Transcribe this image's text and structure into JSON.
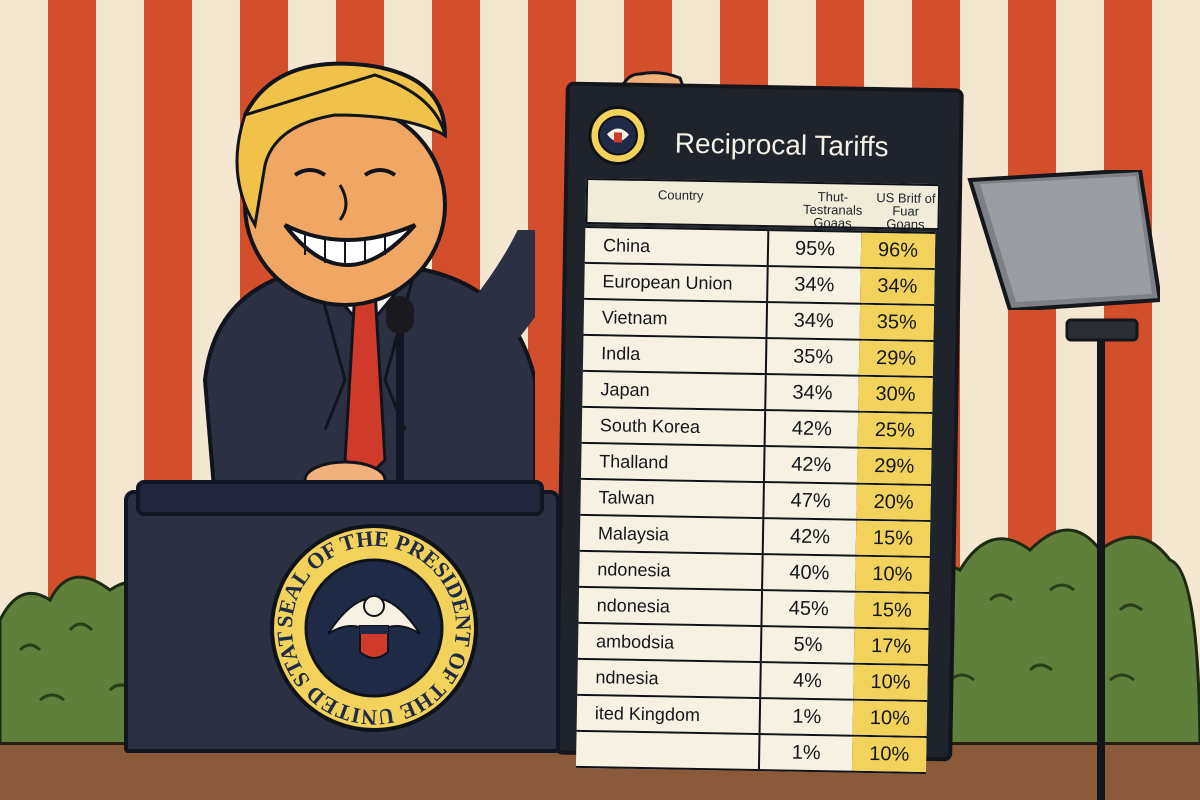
{
  "board": {
    "title": "Reciprocal Tariffs",
    "headers": {
      "country": "Country",
      "col_a": "Thut- Testranals Goaas",
      "col_b": "US Britf of Fuar Goans"
    },
    "rows": [
      {
        "country": "China",
        "a": "95%",
        "b": "96%"
      },
      {
        "country": "European Union",
        "a": "34%",
        "b": "34%"
      },
      {
        "country": "Vietnam",
        "a": "34%",
        "b": "35%"
      },
      {
        "country": "Indla",
        "a": "35%",
        "b": "29%"
      },
      {
        "country": "Japan",
        "a": "34%",
        "b": "30%"
      },
      {
        "country": "South Korea",
        "a": "42%",
        "b": "25%"
      },
      {
        "country": "Thalland",
        "a": "42%",
        "b": "29%"
      },
      {
        "country": "Talwan",
        "a": "47%",
        "b": "20%"
      },
      {
        "country": "Malaysia",
        "a": "42%",
        "b": "15%"
      },
      {
        "country": "ndonesia",
        "a": "40%",
        "b": "10%"
      },
      {
        "country": "ndonesia",
        "a": "45%",
        "b": "15%"
      },
      {
        "country": "ambodsia",
        "a": "5%",
        "b": "17%"
      },
      {
        "country": "ndnesia",
        "a": "4%",
        "b": "10%"
      },
      {
        "country": "ited Kingdom",
        "a": "1%",
        "b": "10%"
      },
      {
        "country": "",
        "a": "1%",
        "b": "10%"
      }
    ]
  },
  "podium_seal": {
    "text": "SEAL OF THE PRESIDENT OF THE UNITED STATES"
  },
  "colors": {
    "stripe_red": "#d34f2c",
    "stripe_cream": "#f4e7d1",
    "board": "#1e232c",
    "highlight": "#f2d25a",
    "podium": "#2b3143",
    "hedge": "#5f7f3a"
  }
}
